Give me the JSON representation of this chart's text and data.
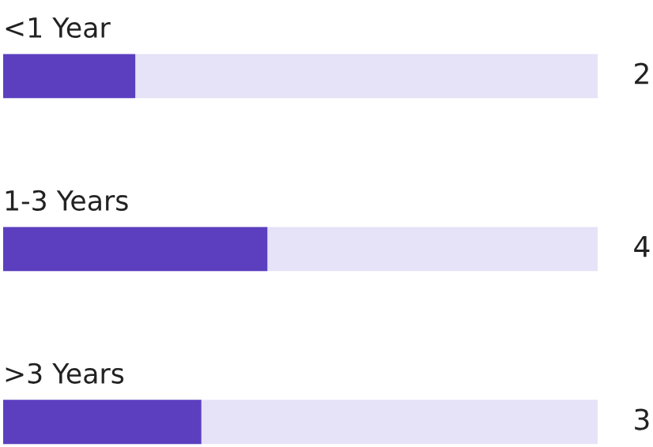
{
  "chart_data": {
    "type": "bar",
    "orientation": "horizontal",
    "categories": [
      "<1 Year",
      "1-3 Years",
      ">3 Years"
    ],
    "values": [
      2,
      4,
      3
    ],
    "color": "#5b3fbf",
    "xlim": [
      0,
      9
    ],
    "data_labels": true
  }
}
